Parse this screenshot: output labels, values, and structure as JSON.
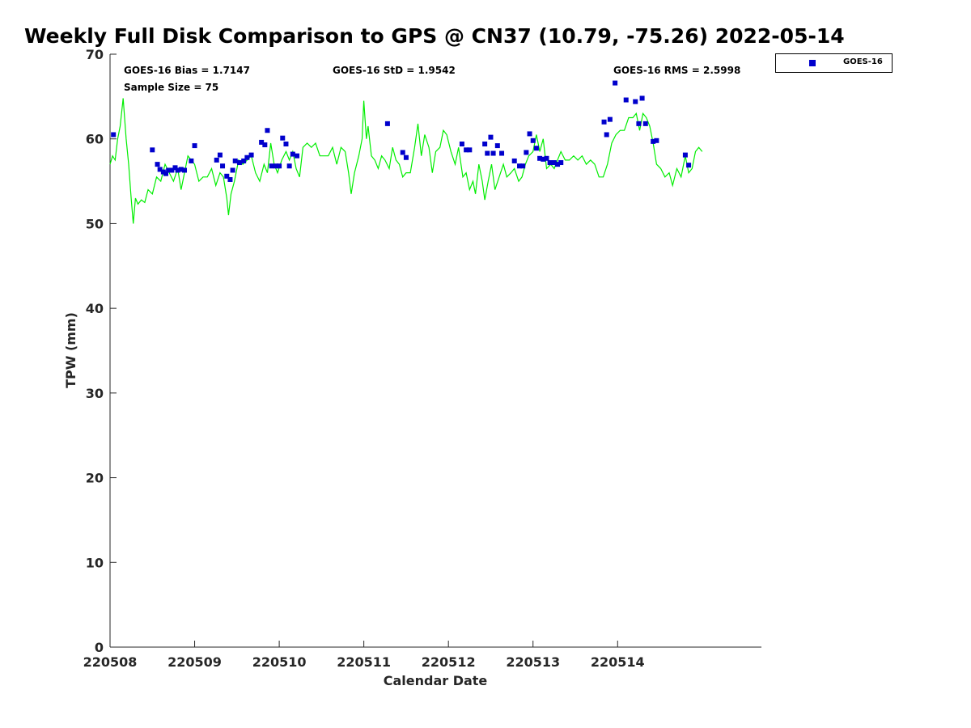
{
  "chart_data": {
    "type": "scatter",
    "title": "Weekly Full Disk Comparison to GPS @ CN37 (10.79, -75.26) 2022-05-14",
    "xlabel": "Calendar Date",
    "ylabel": "TPW (mm)",
    "xlim": [
      220508,
      220515.7
    ],
    "ylim": [
      0,
      70
    ],
    "x_ticks": [
      "220508",
      "220509",
      "220510",
      "220511",
      "220512",
      "220513",
      "220514"
    ],
    "y_ticks": [
      0,
      10,
      20,
      30,
      40,
      50,
      60,
      70
    ],
    "grid": false,
    "legend_position": "outside-top-right",
    "stats": {
      "bias": "GOES-16 Bias = 1.7147",
      "sample_size": "Sample Size = 75",
      "std": "GOES-16 StD = 1.9542",
      "rms": "GOES-16 RMS = 2.5998"
    },
    "series": [
      {
        "name": "GOES-16",
        "marker": "square",
        "color": "#0000cc",
        "points": [
          [
            220508.04,
            60.5
          ],
          [
            220508.5,
            58.7
          ],
          [
            220508.56,
            57.0
          ],
          [
            220508.59,
            56.4
          ],
          [
            220508.63,
            56.1
          ],
          [
            220508.66,
            55.9
          ],
          [
            220508.69,
            56.3
          ],
          [
            220508.73,
            56.3
          ],
          [
            220508.77,
            56.6
          ],
          [
            220508.8,
            56.3
          ],
          [
            220508.84,
            56.4
          ],
          [
            220508.88,
            56.3
          ],
          [
            220508.96,
            57.4
          ],
          [
            220509.0,
            59.2
          ],
          [
            220509.26,
            57.5
          ],
          [
            220509.3,
            58.1
          ],
          [
            220509.33,
            56.8
          ],
          [
            220509.38,
            55.6
          ],
          [
            220509.42,
            55.2
          ],
          [
            220509.45,
            56.3
          ],
          [
            220509.48,
            57.4
          ],
          [
            220509.53,
            57.2
          ],
          [
            220509.58,
            57.4
          ],
          [
            220509.62,
            57.8
          ],
          [
            220509.67,
            58.1
          ],
          [
            220509.79,
            59.6
          ],
          [
            220509.83,
            59.3
          ],
          [
            220509.86,
            61.0
          ],
          [
            220509.91,
            56.8
          ],
          [
            220509.96,
            56.8
          ],
          [
            220510.0,
            56.8
          ],
          [
            220510.04,
            60.1
          ],
          [
            220510.08,
            59.4
          ],
          [
            220510.12,
            56.8
          ],
          [
            220510.16,
            58.2
          ],
          [
            220510.21,
            58.0
          ],
          [
            220511.28,
            61.8
          ],
          [
            220511.46,
            58.4
          ],
          [
            220511.5,
            57.8
          ],
          [
            220512.16,
            59.4
          ],
          [
            220512.21,
            58.7
          ],
          [
            220512.25,
            58.7
          ],
          [
            220512.43,
            59.4
          ],
          [
            220512.46,
            58.3
          ],
          [
            220512.5,
            60.2
          ],
          [
            220512.53,
            58.3
          ],
          [
            220512.58,
            59.2
          ],
          [
            220512.63,
            58.3
          ],
          [
            220512.78,
            57.4
          ],
          [
            220512.84,
            56.8
          ],
          [
            220512.88,
            56.8
          ],
          [
            220512.92,
            58.4
          ],
          [
            220512.96,
            60.6
          ],
          [
            220513.0,
            59.8
          ],
          [
            220513.04,
            58.9
          ],
          [
            220513.08,
            57.7
          ],
          [
            220513.12,
            57.6
          ],
          [
            220513.16,
            57.7
          ],
          [
            220513.2,
            57.2
          ],
          [
            220513.25,
            57.2
          ],
          [
            220513.29,
            57.0
          ],
          [
            220513.33,
            57.2
          ],
          [
            220513.84,
            62.0
          ],
          [
            220513.87,
            60.5
          ],
          [
            220513.91,
            62.3
          ],
          [
            220513.97,
            66.6
          ],
          [
            220514.1,
            64.6
          ],
          [
            220514.21,
            64.4
          ],
          [
            220514.25,
            61.8
          ],
          [
            220514.29,
            64.8
          ],
          [
            220514.33,
            61.8
          ],
          [
            220514.42,
            59.7
          ],
          [
            220514.46,
            59.8
          ],
          [
            220514.8,
            58.1
          ],
          [
            220514.84,
            56.9
          ]
        ]
      },
      {
        "name": "",
        "style": "line",
        "color": "#00ee00",
        "points": [
          [
            220508.0,
            57.0
          ],
          [
            220508.03,
            58.0
          ],
          [
            220508.06,
            57.5
          ],
          [
            220508.09,
            60.0
          ],
          [
            220508.12,
            61.5
          ],
          [
            220508.155,
            64.8
          ],
          [
            220508.19,
            60.0
          ],
          [
            220508.22,
            57.0
          ],
          [
            220508.25,
            53.0
          ],
          [
            220508.275,
            50.0
          ],
          [
            220508.3,
            53.0
          ],
          [
            220508.33,
            52.3
          ],
          [
            220508.37,
            52.8
          ],
          [
            220508.41,
            52.5
          ],
          [
            220508.45,
            54.0
          ],
          [
            220508.5,
            53.5
          ],
          [
            220508.55,
            55.5
          ],
          [
            220508.6,
            55.0
          ],
          [
            220508.65,
            57.0
          ],
          [
            220508.7,
            56.0
          ],
          [
            220508.75,
            55.0
          ],
          [
            220508.8,
            56.5
          ],
          [
            220508.84,
            54.0
          ],
          [
            220508.88,
            56.0
          ],
          [
            220508.92,
            58.0
          ],
          [
            220508.96,
            57.5
          ],
          [
            220509.0,
            57.0
          ],
          [
            220509.05,
            55.0
          ],
          [
            220509.1,
            55.5
          ],
          [
            220509.15,
            55.5
          ],
          [
            220509.2,
            56.5
          ],
          [
            220509.25,
            54.5
          ],
          [
            220509.3,
            56.0
          ],
          [
            220509.34,
            55.5
          ],
          [
            220509.38,
            53.0
          ],
          [
            220509.4,
            51.0
          ],
          [
            220509.43,
            53.5
          ],
          [
            220509.47,
            55.0
          ],
          [
            220509.52,
            57.5
          ],
          [
            220509.57,
            57.0
          ],
          [
            220509.62,
            57.5
          ],
          [
            220509.67,
            58.0
          ],
          [
            220509.72,
            56.0
          ],
          [
            220509.77,
            55.0
          ],
          [
            220509.82,
            57.0
          ],
          [
            220509.86,
            56.0
          ],
          [
            220509.9,
            59.5
          ],
          [
            220509.94,
            57.0
          ],
          [
            220509.98,
            56.0
          ],
          [
            220510.03,
            57.5
          ],
          [
            220510.08,
            58.5
          ],
          [
            220510.12,
            57.5
          ],
          [
            220510.16,
            58.5
          ],
          [
            220510.2,
            56.5
          ],
          [
            220510.24,
            55.5
          ],
          [
            220510.28,
            59.0
          ],
          [
            220510.33,
            59.5
          ],
          [
            220510.38,
            59.0
          ],
          [
            220510.43,
            59.5
          ],
          [
            220510.48,
            58.0
          ],
          [
            220510.53,
            58.0
          ],
          [
            220510.58,
            58.0
          ],
          [
            220510.63,
            59.0
          ],
          [
            220510.68,
            57.0
          ],
          [
            220510.73,
            59.0
          ],
          [
            220510.78,
            58.5
          ],
          [
            220510.82,
            56.0
          ],
          [
            220510.85,
            53.5
          ],
          [
            220510.89,
            56.0
          ],
          [
            220510.94,
            58.0
          ],
          [
            220510.98,
            60.0
          ],
          [
            220511.0,
            64.5
          ],
          [
            220511.03,
            60.0
          ],
          [
            220511.05,
            61.5
          ],
          [
            220511.09,
            58.0
          ],
          [
            220511.13,
            57.5
          ],
          [
            220511.17,
            56.5
          ],
          [
            220511.21,
            58.0
          ],
          [
            220511.25,
            57.5
          ],
          [
            220511.3,
            56.5
          ],
          [
            220511.34,
            59.0
          ],
          [
            220511.38,
            57.5
          ],
          [
            220511.42,
            57.0
          ],
          [
            220511.46,
            55.5
          ],
          [
            220511.5,
            56.0
          ],
          [
            220511.55,
            56.0
          ],
          [
            220511.6,
            59.0
          ],
          [
            220511.64,
            61.8
          ],
          [
            220511.68,
            58.0
          ],
          [
            220511.72,
            60.5
          ],
          [
            220511.77,
            59.0
          ],
          [
            220511.81,
            56.0
          ],
          [
            220511.85,
            58.5
          ],
          [
            220511.9,
            59.0
          ],
          [
            220511.94,
            61.0
          ],
          [
            220511.98,
            60.5
          ],
          [
            220512.03,
            58.5
          ],
          [
            220512.08,
            57.0
          ],
          [
            220512.12,
            59.0
          ],
          [
            220512.17,
            55.5
          ],
          [
            220512.21,
            56.0
          ],
          [
            220512.25,
            54.0
          ],
          [
            220512.29,
            55.0
          ],
          [
            220512.32,
            53.5
          ],
          [
            220512.36,
            57.0
          ],
          [
            220512.4,
            55.0
          ],
          [
            220512.43,
            52.8
          ],
          [
            220512.47,
            55.0
          ],
          [
            220512.51,
            57.0
          ],
          [
            220512.55,
            54.0
          ],
          [
            220512.6,
            55.5
          ],
          [
            220512.65,
            57.0
          ],
          [
            220512.69,
            55.5
          ],
          [
            220512.74,
            56.0
          ],
          [
            220512.78,
            56.5
          ],
          [
            220512.83,
            55.0
          ],
          [
            220512.87,
            55.5
          ],
          [
            220512.91,
            57.0
          ],
          [
            220512.95,
            58.0
          ],
          [
            220513.0,
            58.5
          ],
          [
            220513.04,
            60.5
          ],
          [
            220513.08,
            58.5
          ],
          [
            220513.12,
            60.0
          ],
          [
            220513.16,
            56.5
          ],
          [
            220513.21,
            57.0
          ],
          [
            220513.25,
            56.5
          ],
          [
            220513.29,
            57.5
          ],
          [
            220513.33,
            58.5
          ],
          [
            220513.38,
            57.5
          ],
          [
            220513.43,
            57.5
          ],
          [
            220513.48,
            58.0
          ],
          [
            220513.53,
            57.5
          ],
          [
            220513.58,
            58.0
          ],
          [
            220513.63,
            57.0
          ],
          [
            220513.68,
            57.5
          ],
          [
            220513.73,
            57.0
          ],
          [
            220513.78,
            55.5
          ],
          [
            220513.83,
            55.5
          ],
          [
            220513.88,
            57.0
          ],
          [
            220513.93,
            59.5
          ],
          [
            220513.98,
            60.5
          ],
          [
            220514.03,
            61.0
          ],
          [
            220514.08,
            61.0
          ],
          [
            220514.13,
            62.5
          ],
          [
            220514.18,
            62.5
          ],
          [
            220514.22,
            63.0
          ],
          [
            220514.26,
            61.0
          ],
          [
            220514.3,
            63.0
          ],
          [
            220514.34,
            62.5
          ],
          [
            220514.38,
            61.5
          ],
          [
            220514.42,
            59.5
          ],
          [
            220514.46,
            57.0
          ],
          [
            220514.51,
            56.5
          ],
          [
            220514.56,
            55.5
          ],
          [
            220514.61,
            56.0
          ],
          [
            220514.65,
            54.5
          ],
          [
            220514.7,
            56.5
          ],
          [
            220514.75,
            55.5
          ],
          [
            220514.8,
            58.0
          ],
          [
            220514.84,
            56.0
          ],
          [
            220514.88,
            56.5
          ],
          [
            220514.92,
            58.5
          ],
          [
            220514.96,
            59.0
          ],
          [
            220515.0,
            58.5
          ]
        ]
      }
    ]
  }
}
